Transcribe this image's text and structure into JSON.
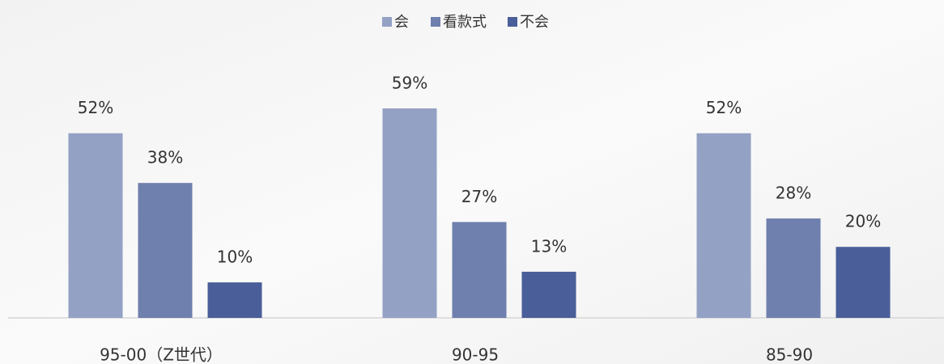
{
  "chart_data": {
    "type": "bar",
    "categories": [
      "95-00（Z世代）",
      "90-95",
      "85-90"
    ],
    "series": [
      {
        "name": "会",
        "color": "#93a1c4",
        "values": [
          52,
          59,
          52
        ],
        "value_labels": [
          "52%",
          "59%",
          "52%"
        ]
      },
      {
        "name": "看款式",
        "color": "#6f7fae",
        "values": [
          38,
          27,
          28
        ],
        "value_labels": [
          "38%",
          "27%",
          "28%"
        ]
      },
      {
        "name": "不会",
        "color": "#4a5e99",
        "values": [
          10,
          13,
          20
        ],
        "value_labels": [
          "10%",
          "13%",
          "20%"
        ]
      }
    ],
    "legend": "top"
  }
}
